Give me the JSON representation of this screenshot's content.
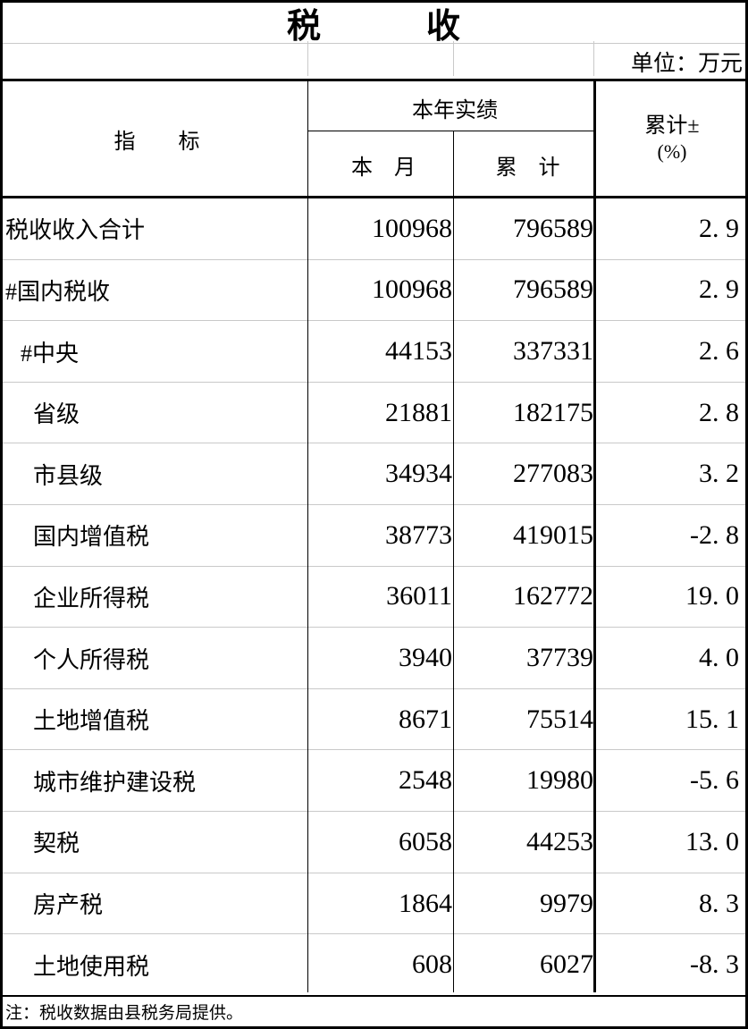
{
  "title": "税　　　收",
  "unit_label": "单位：万元",
  "header": {
    "indicator": "指　　标",
    "year_actual": "本年实绩",
    "month": "本　月",
    "cumulative": "累　计",
    "pct_line1": "累计±",
    "pct_line2": "(%)"
  },
  "rows": [
    {
      "label": "税收收入合计",
      "indent": 0,
      "month": "100968",
      "cum": "796589",
      "pct": "2. 9"
    },
    {
      "label": "#国内税收",
      "indent": 0,
      "month": "100968",
      "cum": "796589",
      "pct": "2. 9"
    },
    {
      "label": "#中央",
      "indent": 1,
      "month": "44153",
      "cum": "337331",
      "pct": "2. 6"
    },
    {
      "label": "省级",
      "indent": 2,
      "month": "21881",
      "cum": "182175",
      "pct": "2. 8"
    },
    {
      "label": "市县级",
      "indent": 2,
      "month": "34934",
      "cum": "277083",
      "pct": "3. 2"
    },
    {
      "label": "国内增值税",
      "indent": 2,
      "month": "38773",
      "cum": "419015",
      "pct": "-2. 8"
    },
    {
      "label": "企业所得税",
      "indent": 2,
      "month": "36011",
      "cum": "162772",
      "pct": "19. 0"
    },
    {
      "label": "个人所得税",
      "indent": 2,
      "month": "3940",
      "cum": "37739",
      "pct": "4. 0"
    },
    {
      "label": "土地增值税",
      "indent": 2,
      "month": "8671",
      "cum": "75514",
      "pct": "15. 1"
    },
    {
      "label": "城市维护建设税",
      "indent": 2,
      "month": "2548",
      "cum": "19980",
      "pct": "-5. 6"
    },
    {
      "label": "契税",
      "indent": 2,
      "month": "6058",
      "cum": "44253",
      "pct": "13. 0"
    },
    {
      "label": "房产税",
      "indent": 2,
      "month": "1864",
      "cum": "9979",
      "pct": "8. 3"
    },
    {
      "label": "土地使用税",
      "indent": 2,
      "month": "608",
      "cum": "6027",
      "pct": "-8. 3"
    }
  ],
  "note": "注：税收数据由县税务局提供。",
  "colors": {
    "border_black": "#000000",
    "grid_gray": "#c9c9c9",
    "background": "#ffffff",
    "text": "#000000"
  },
  "chart_data": {
    "type": "table",
    "title": "税收",
    "unit": "万元",
    "columns": [
      "指标",
      "本年实绩-本月",
      "本年实绩-累计",
      "累计±(%)"
    ],
    "rows": [
      [
        "税收收入合计",
        100968,
        796589,
        2.9
      ],
      [
        "#国内税收",
        100968,
        796589,
        2.9
      ],
      [
        "#中央",
        44153,
        337331,
        2.6
      ],
      [
        "省级",
        21881,
        182175,
        2.8
      ],
      [
        "市县级",
        34934,
        277083,
        3.2
      ],
      [
        "国内增值税",
        38773,
        419015,
        -2.8
      ],
      [
        "企业所得税",
        36011,
        162772,
        19.0
      ],
      [
        "个人所得税",
        3940,
        37739,
        4.0
      ],
      [
        "土地增值税",
        8671,
        75514,
        15.1
      ],
      [
        "城市维护建设税",
        2548,
        19980,
        -5.6
      ],
      [
        "契税",
        6058,
        44253,
        13.0
      ],
      [
        "房产税",
        1864,
        9979,
        8.3
      ],
      [
        "土地使用税",
        608,
        6027,
        -8.3
      ]
    ],
    "note": "注：税收数据由县税务局提供。"
  }
}
